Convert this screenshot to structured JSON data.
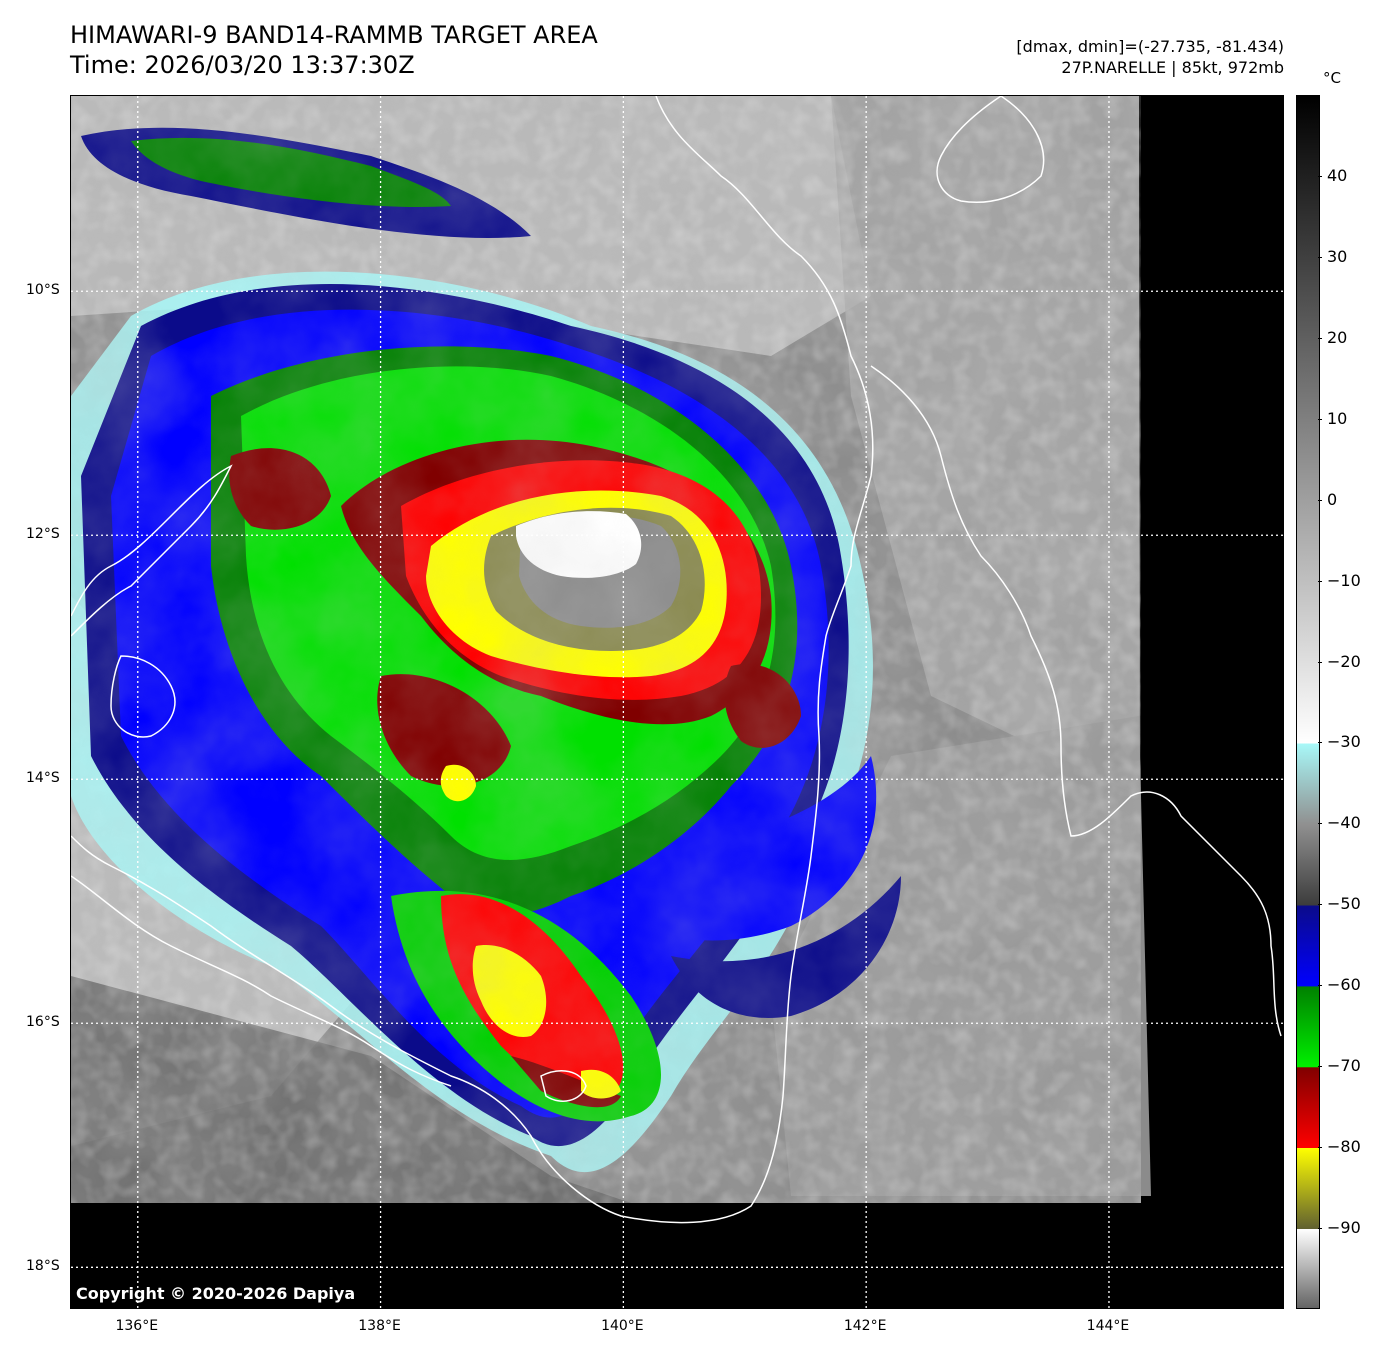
{
  "header": {
    "title_line1": "HIMAWARI-9 BAND14-RAMMB TARGET AREA",
    "title_line2": "Time: 2026/03/20 13:37:30Z",
    "range_text": "[dmax, dmin]=(-27.735, -81.434)",
    "storm_text": "27P.NARELLE | 85kt, 972mb"
  },
  "map": {
    "lon_labels": [
      "136°E",
      "138°E",
      "140°E",
      "142°E",
      "144°E"
    ],
    "lat_labels": [
      "10°S",
      "12°S",
      "14°S",
      "16°S",
      "18°S"
    ],
    "lon_values": [
      136,
      138,
      140,
      142,
      144
    ],
    "lat_values": [
      -10,
      -12,
      -14,
      -16,
      -18
    ],
    "lon_range": [
      135.45,
      145.45
    ],
    "lat_range": [
      -18.35,
      -8.4
    ],
    "storm_center": {
      "lon": 139.6,
      "lat": -12.3
    },
    "copyright": "Copyright © 2020-2026 Dapiya",
    "coastline_color": "#ffffff",
    "gridline_color": "#ffffff"
  },
  "colorbar": {
    "unit": "°C",
    "labels": [
      "40",
      "30",
      "20",
      "10",
      "0",
      "−10",
      "−20",
      "−30",
      "−40",
      "−50",
      "−60",
      "−70",
      "−80",
      "−90"
    ],
    "values": [
      40,
      30,
      20,
      10,
      0,
      -10,
      -20,
      -30,
      -40,
      -50,
      -60,
      -70,
      -80,
      -90
    ],
    "vmax": 50,
    "vmin": -100,
    "colors": {
      "warm": "#000000",
      "mid": "#9a9a9a",
      "cool": "#ffffff",
      "cyan": "#a8f8f8",
      "dark_gray": "#3c3c3c",
      "navy": "#0b0b8a",
      "blue": "#0000ff",
      "dark_green": "#008000",
      "green": "#00f000",
      "dark_red": "#800000",
      "red": "#ff0000",
      "yellow": "#ffff00",
      "olive": "#606030",
      "coldest": "#ffffff"
    }
  }
}
